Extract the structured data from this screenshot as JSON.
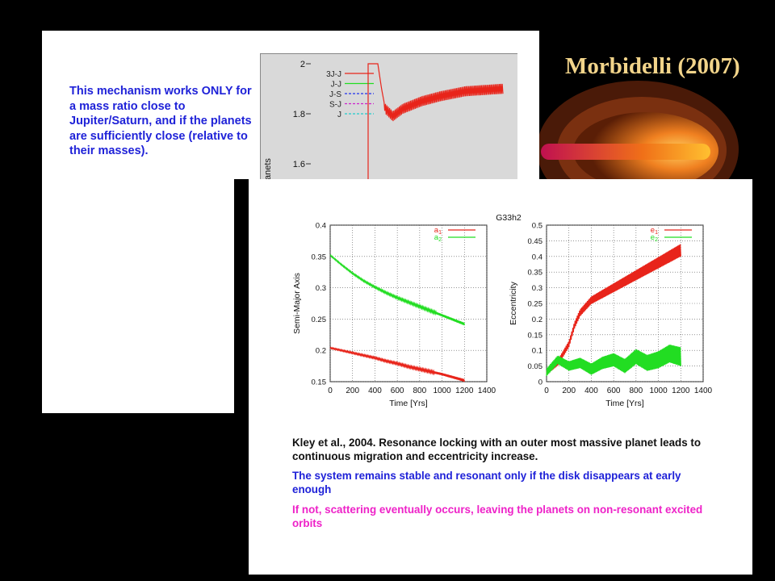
{
  "slide_title": "Morbidelli (2007)",
  "back_text": "This mechanism works ONLY for a mass ratio close to Jupiter/Saturn, and if the planets are sufficiently close (relative to their masses).",
  "front_paragraphs": [
    "Kley et al., 2004. Resonance locking with an outer most massive planet leads to continuous migration and eccentricity increase.",
    "The system remains stable and resonant only if the disk disappears at early enough",
    "If not, scattering eventually occurs, leaving the planets on non-resonant excited orbits"
  ],
  "colors": {
    "red": "#e8241a",
    "green": "#22dd22",
    "blue_text": "#1f22d8",
    "magenta_text": "#ee22c8",
    "title": "#f2d48a"
  },
  "chart_data": [
    {
      "type": "line",
      "y_ticks": [
        "2",
        "1.8",
        "1.6"
      ],
      "ylim": [
        1.5,
        2.0
      ],
      "ylabel_visible": "anets",
      "legend": [
        "3J-J",
        "J-J",
        "J-S",
        "S-J",
        "J"
      ],
      "legend_colors": [
        "#e8241a",
        "#22dd22",
        "#2233ee",
        "#cc22cc",
        "#22cccc"
      ],
      "series": [
        {
          "values_x": [
            0.0,
            0.03,
            0.06,
            0.12,
            0.2,
            0.35,
            0.5,
            0.7,
            1.0
          ],
          "values_y": [
            2.0,
            1.9,
            1.82,
            1.79,
            1.82,
            1.85,
            1.87,
            1.89,
            1.9
          ]
        }
      ]
    },
    {
      "type": "line",
      "suptitle": "G33h2",
      "xlabel": "Time [Yrs]",
      "ylabel": "Semi-Major Axis",
      "xlim": [
        0,
        1400
      ],
      "ylim": [
        0.15,
        0.4
      ],
      "x_ticks": [
        "0",
        "200",
        "400",
        "600",
        "800",
        "1000",
        "1200",
        "1400"
      ],
      "y_ticks": [
        "0.4",
        "0.35",
        "0.3",
        "0.25",
        "0.2",
        "0.15"
      ],
      "series": [
        {
          "name": "a1",
          "x": [
            0,
            100,
            200,
            300,
            400,
            500,
            600,
            700,
            800,
            900,
            1000,
            1100,
            1200
          ],
          "y": [
            0.204,
            0.2,
            0.196,
            0.192,
            0.188,
            0.183,
            0.179,
            0.174,
            0.17,
            0.166,
            0.162,
            0.157,
            0.152
          ]
        },
        {
          "name": "a2",
          "x": [
            0,
            100,
            200,
            300,
            400,
            500,
            600,
            700,
            800,
            900,
            1000,
            1100,
            1200
          ],
          "y": [
            0.352,
            0.337,
            0.323,
            0.311,
            0.301,
            0.292,
            0.284,
            0.277,
            0.27,
            0.263,
            0.256,
            0.249,
            0.242
          ]
        }
      ]
    },
    {
      "type": "line",
      "xlabel": "Time [Yrs]",
      "ylabel": "Eccentricity",
      "xlim": [
        0,
        1400
      ],
      "ylim": [
        0,
        0.5
      ],
      "x_ticks": [
        "0",
        "200",
        "400",
        "600",
        "800",
        "1000",
        "1200",
        "1400"
      ],
      "y_ticks": [
        "0.5",
        "0.45",
        "0.4",
        "0.35",
        "0.3",
        "0.25",
        "0.2",
        "0.15",
        "0.1",
        "0.05",
        "0"
      ],
      "series": [
        {
          "name": "e1",
          "x": [
            0,
            100,
            200,
            250,
            300,
            350,
            400,
            500,
            600,
            700,
            800,
            900,
            1000,
            1100,
            1200
          ],
          "y": [
            0.03,
            0.06,
            0.12,
            0.18,
            0.22,
            0.24,
            0.26,
            0.28,
            0.3,
            0.32,
            0.34,
            0.36,
            0.38,
            0.4,
            0.42
          ]
        },
        {
          "name": "e2",
          "x": [
            0,
            100,
            200,
            300,
            400,
            500,
            600,
            700,
            800,
            900,
            1000,
            1100,
            1200
          ],
          "y": [
            0.03,
            0.07,
            0.05,
            0.06,
            0.04,
            0.06,
            0.07,
            0.05,
            0.08,
            0.06,
            0.07,
            0.09,
            0.08
          ]
        }
      ]
    }
  ]
}
